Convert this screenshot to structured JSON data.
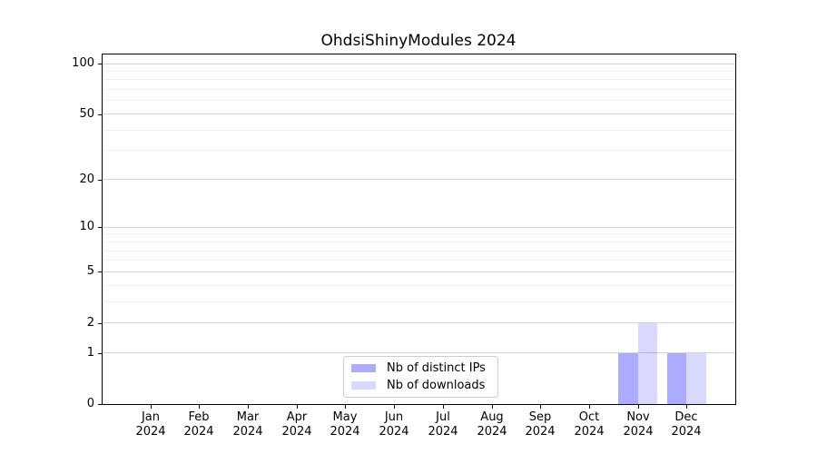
{
  "title": "OhdsiShinyModules 2024",
  "chart_data": {
    "type": "bar",
    "title": "OhdsiShinyModules 2024",
    "xlabel": "",
    "ylabel": "",
    "y_scale": "log10(1+x)",
    "ylim": [
      0,
      115
    ],
    "grid": "horizontal",
    "legend_position": "bottom-center-inside",
    "categories": [
      "Jan 2024",
      "Feb 2024",
      "Mar 2024",
      "Apr 2024",
      "May 2024",
      "Jun 2024",
      "Jul 2024",
      "Aug 2024",
      "Sep 2024",
      "Oct 2024",
      "Nov 2024",
      "Dec 2024"
    ],
    "series": [
      {
        "name": "Nb of distinct IPs",
        "color": "rgba(0,0,255,0.33)",
        "values": [
          0,
          0,
          0,
          0,
          0,
          0,
          0,
          0,
          0,
          0,
          1,
          1
        ]
      },
      {
        "name": "Nb of downloads",
        "color": "rgba(0,0,255,0.15)",
        "values": [
          0,
          0,
          0,
          0,
          0,
          0,
          0,
          0,
          0,
          0,
          2,
          1
        ]
      }
    ],
    "yticks_major": [
      0,
      1,
      2,
      5,
      10,
      20,
      50,
      100
    ],
    "yticks_minor": [
      3,
      4,
      6,
      7,
      8,
      9,
      30,
      40,
      60,
      70,
      80,
      90
    ]
  },
  "colors": {
    "axis": "#000000",
    "grid_major": "#d2d2d2",
    "grid_minor": "#f0f0f0",
    "background": "#ffffff"
  }
}
